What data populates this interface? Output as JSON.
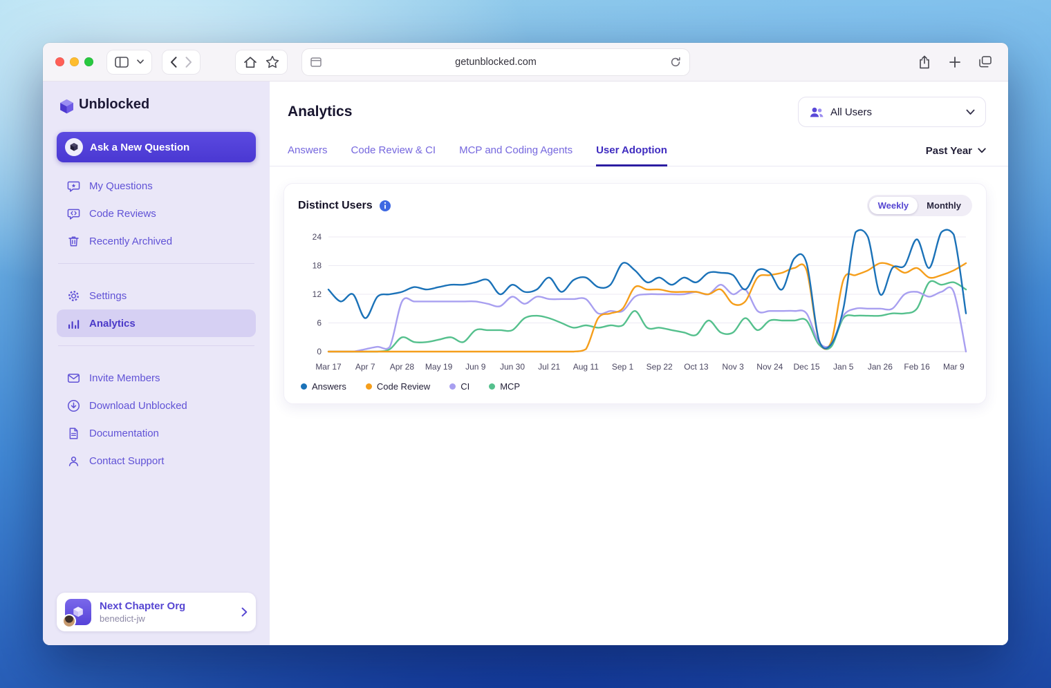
{
  "browser": {
    "url": "getunblocked.com",
    "window_buttons": [
      "close",
      "minimize",
      "zoom"
    ]
  },
  "colors": {
    "accent_purple": "#5342d9",
    "sidebar_bg": "#eae7f8",
    "active_tab": "#3f2cc0",
    "traffic_red": "#ff5f57",
    "traffic_yellow": "#febc2e",
    "traffic_green": "#28c840"
  },
  "sidebar": {
    "logo_text": "Unblocked",
    "ask_label": "Ask a New Question",
    "nav_primary": [
      {
        "label": "My Questions",
        "icon": "chat-icon"
      },
      {
        "label": "Code Reviews",
        "icon": "code-review-icon"
      },
      {
        "label": "Recently Archived",
        "icon": "trash-icon"
      }
    ],
    "nav_secondary": [
      {
        "label": "Settings",
        "icon": "gear-icon",
        "active": false
      },
      {
        "label": "Analytics",
        "icon": "analytics-icon",
        "active": true
      }
    ],
    "nav_tertiary": [
      {
        "label": "Invite Members",
        "icon": "mail-icon"
      },
      {
        "label": "Download Unblocked",
        "icon": "download-icon"
      },
      {
        "label": "Documentation",
        "icon": "document-icon"
      },
      {
        "label": "Contact Support",
        "icon": "support-icon"
      }
    ],
    "org": {
      "name": "Next Chapter Org",
      "username": "benedict-jw"
    }
  },
  "header": {
    "title": "Analytics",
    "audience_label": "All Users",
    "audience_icon": "users-icon",
    "range_label": "Past Year"
  },
  "tabs": [
    {
      "label": "Answers",
      "active": false
    },
    {
      "label": "Code Review & CI",
      "active": false
    },
    {
      "label": "MCP and Coding Agents",
      "active": false
    },
    {
      "label": "User Adoption",
      "active": true
    }
  ],
  "card": {
    "title": "Distinct Users",
    "info_icon": "info-icon",
    "toggles": [
      {
        "label": "Weekly",
        "active": true
      },
      {
        "label": "Monthly",
        "active": false
      }
    ]
  },
  "chart_data": {
    "type": "line",
    "title": "Distinct Users",
    "interval": "weekly",
    "ylim": [
      0,
      24
    ],
    "y_ticks": [
      0,
      6,
      12,
      18,
      24
    ],
    "grid": "horizontal",
    "legend_position": "bottom",
    "tick_every_weeks": 3,
    "x_tick_labels": [
      "Mar 17",
      "Apr 7",
      "Apr 28",
      "May 19",
      "Jun 9",
      "Jun 30",
      "Jul 21",
      "Aug 11",
      "Sep 1",
      "Sep 22",
      "Oct 13",
      "Nov 3",
      "Nov 24",
      "Dec 15",
      "Jan 5",
      "Jan 26",
      "Feb 16",
      "Mar 9"
    ],
    "series": [
      {
        "name": "Answers",
        "color": "#1b72b8",
        "values": [
          13,
          10.5,
          12,
          7,
          11.5,
          12,
          12.5,
          13.5,
          13,
          13.5,
          14,
          14,
          14.5,
          15,
          12,
          14,
          12.5,
          13,
          15.5,
          12.5,
          15,
          15.5,
          13.5,
          14,
          18.5,
          17,
          14.5,
          15.5,
          14,
          15.5,
          14.5,
          16.5,
          16.5,
          16,
          13,
          17,
          16.5,
          13,
          19.5,
          18.5,
          2.5,
          1.5,
          9,
          25,
          24,
          12,
          17.5,
          18,
          23.5,
          17.5,
          25,
          24.5,
          8
        ]
      },
      {
        "name": "Code Review",
        "color": "#f59e1b",
        "values": [
          0,
          0,
          0,
          0,
          0,
          0,
          0,
          0,
          0,
          0,
          0,
          0,
          0,
          0,
          0,
          0,
          0,
          0,
          0,
          0,
          0,
          0.5,
          7,
          8,
          9,
          13.5,
          13,
          13,
          12.5,
          12.5,
          12.5,
          12,
          13,
          10,
          10.5,
          15.5,
          16,
          16.5,
          17.5,
          17,
          2.5,
          2,
          15,
          16,
          17,
          18.5,
          18,
          16.5,
          17.5,
          15.5,
          16,
          17,
          18.5
        ]
      },
      {
        "name": "CI",
        "color": "#a89ff0",
        "values": [
          0,
          0,
          0,
          0.5,
          1,
          1,
          10.5,
          10.5,
          10.5,
          10.5,
          10.5,
          10.5,
          10.5,
          10,
          9.5,
          11.5,
          10,
          11.5,
          11,
          11,
          11,
          11,
          8,
          8.5,
          8.5,
          11.5,
          12,
          12,
          12,
          12,
          12.5,
          12,
          14,
          12,
          13,
          8.5,
          8.5,
          8.5,
          8.5,
          8,
          2,
          1.5,
          7.5,
          9,
          9,
          9,
          9,
          12,
          12.5,
          11.5,
          12.5,
          12.5,
          0
        ]
      },
      {
        "name": "MCP",
        "color": "#55c08d",
        "values": [
          0,
          0,
          0,
          0,
          0,
          0.5,
          3,
          2,
          2,
          2.5,
          3,
          2,
          4.5,
          4.5,
          4.5,
          4.5,
          7,
          7.5,
          7,
          6,
          5,
          5.5,
          5,
          5.5,
          5.5,
          8.5,
          5,
          5,
          4.5,
          4,
          3.5,
          6.5,
          4,
          4,
          7,
          4.5,
          6.5,
          6.5,
          6.5,
          6.5,
          1.5,
          1,
          7,
          7.5,
          7.5,
          7.5,
          8,
          8,
          9,
          14.5,
          14,
          14.5,
          13
        ]
      }
    ]
  }
}
